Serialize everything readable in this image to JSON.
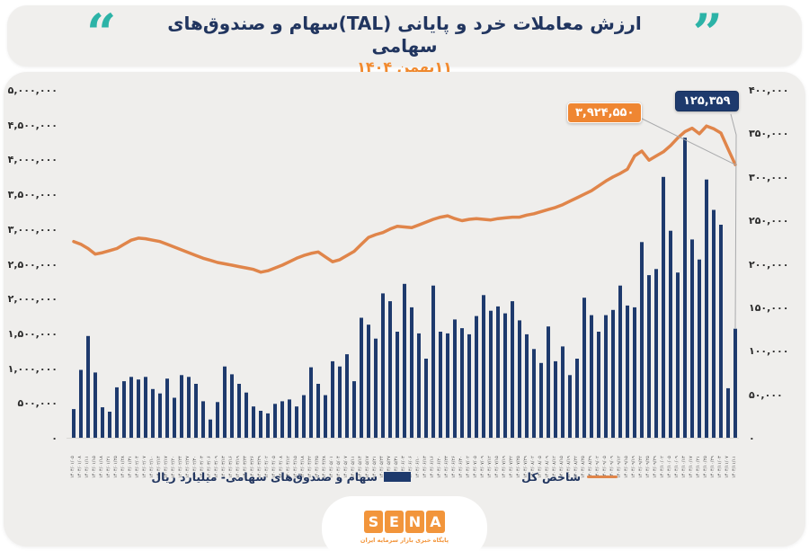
{
  "header": {
    "title": "ارزش معاملات خرد و پایانی (TAL)سهام و صندوق‌های سهامی",
    "date": "۱۱بهمن ۱۴۰۴",
    "quote_open": "“",
    "quote_close": "”",
    "quote_color": "#2cb3a7",
    "title_color": "#21355f",
    "date_color": "#f28a2e"
  },
  "chart_data": {
    "type": "bar",
    "subtype": "combo-bar-line",
    "grid": false,
    "legend_position": "bottom",
    "x_labels": [
      "۱۴۰۴/۰۱/۰۵",
      "۱۴۰۴/۰۱/۰۸",
      "۱۴۰۴/۰۱/۱۱",
      "۱۴۰۴/۰۱/۱۵",
      "۱۴۰۴/۰۱/۱۸",
      "۱۴۰۴/۰۱/۲۱",
      "۱۴۰۴/۰۱/۲۵",
      "۱۴۰۴/۰۱/۲۸",
      "۱۴۰۴/۰۱/۳۱",
      "۱۴۰۴/۰۲/۰۴",
      "۱۴۰۴/۰۲/۰۷",
      "۱۴۰۴/۰۲/۱۰",
      "۱۴۰۴/۰۲/۱۴",
      "۱۴۰۴/۰۲/۱۷",
      "۱۴۰۴/۰۲/۲۰",
      "۱۴۰۴/۰۲/۲۴",
      "۱۴۰۴/۰۲/۲۷",
      "۱۴۰۴/۰۲/۳۰",
      "۱۴۰۴/۰۳/۰۳",
      "۱۴۰۴/۰۳/۰۶",
      "۱۴۰۴/۰۳/۰۹",
      "۱۴۰۴/۰۳/۱۳",
      "۱۴۰۴/۰۳/۱۶",
      "۱۴۰۴/۰۳/۱۹",
      "۱۴۰۴/۰۳/۲۳",
      "۱۴۰۴/۰۳/۲۶",
      "۱۴۰۴/۰۳/۲۹",
      "۱۴۰۴/۰۴/۰۲",
      "۱۴۰۴/۰۴/۰۵",
      "۱۴۰۴/۰۴/۰۸",
      "۱۴۰۴/۰۴/۱۲",
      "۱۴۰۴/۰۴/۱۵",
      "۱۴۰۴/۰۴/۱۸",
      "۱۴۰۴/۰۴/۲۲",
      "۱۴۰۴/۰۴/۲۵",
      "۱۴۰۴/۰۴/۲۸",
      "۱۴۰۴/۰۵/۰۱",
      "۱۴۰۴/۰۵/۰۴",
      "۱۴۰۴/۰۵/۰۷",
      "۱۴۰۴/۰۵/۱۱",
      "۱۴۰۴/۰۵/۱۴",
      "۱۴۰۴/۰۵/۱۷",
      "۱۴۰۴/۰۵/۲۱",
      "۱۴۰۴/۰۵/۲۴",
      "۱۴۰۴/۰۵/۲۷",
      "۱۴۰۴/۰۵/۳۱",
      "۱۴۰۴/۰۶/۰۳",
      "۱۴۰۴/۰۶/۰۶",
      "۱۴۰۴/۰۶/۱۰",
      "۱۴۰۴/۰۶/۱۳",
      "۱۴۰۴/۰۶/۱۶",
      "۱۴۰۴/۰۶/۲۰",
      "۱۴۰۴/۰۶/۲۳",
      "۱۴۰۴/۰۶/۲۶",
      "۱۴۰۴/۰۶/۳۰",
      "۱۴۰۴/۰۷/۰۲",
      "۱۴۰۴/۰۷/۰۵",
      "۱۴۰۴/۰۷/۰۹",
      "۱۴۰۴/۰۷/۱۲",
      "۱۴۰۴/۰۷/۱۵",
      "۱۴۰۴/۰۷/۱۹",
      "۱۴۰۴/۰۷/۲۲",
      "۱۴۰۴/۰۷/۲۵",
      "۱۴۰۴/۰۷/۲۹",
      "۱۴۰۴/۰۸/۰۲",
      "۱۴۰۴/۰۸/۰۵",
      "۱۴۰۴/۰۸/۰۹",
      "۱۴۰۴/۰۸/۱۲",
      "۱۴۰۴/۰۸/۱۵",
      "۱۴۰۴/۰۸/۱۹",
      "۱۴۰۴/۰۸/۲۲",
      "۱۴۰۴/۰۸/۲۵",
      "۱۴۰۴/۰۸/۲۹",
      "۱۴۰۴/۰۹/۰۲",
      "۱۴۰۴/۰۹/۰۵",
      "۱۴۰۴/۰۹/۰۹",
      "۱۴۰۴/۰۹/۱۲",
      "۱۴۰۴/۰۹/۱۵",
      "۱۴۰۴/۰۹/۱۹",
      "۱۴۰۴/۰۹/۲۲",
      "۱۴۰۴/۰۹/۲۵",
      "۱۴۰۴/۰۹/۲۹",
      "۱۴۰۴/۱۰/۰۲",
      "۱۴۰۴/۱۰/۰۵",
      "۱۴۰۴/۱۰/۰۹",
      "۱۴۰۴/۱۰/۱۳",
      "۱۴۰۴/۱۰/۱۷",
      "۱۴۰۴/۱۰/۲۱",
      "۱۴۰۴/۱۰/۲۵",
      "۱۴۰۴/۱۰/۲۹",
      "۱۴۰۴/۱۱/۰۳",
      "۱۴۰۴/۱۱/۰۷",
      "۱۴۰۴/۱۱/۱۱"
    ],
    "series": [
      {
        "name": "سهام و صندوق‌های سهامی- میلیارد ریال",
        "type": "bar",
        "axis": "right",
        "color": "#1e3a6d",
        "values": [
          33000,
          78000,
          117000,
          75000,
          35000,
          30000,
          58000,
          65000,
          70000,
          67000,
          70000,
          56000,
          51000,
          68000,
          46000,
          72000,
          70000,
          62000,
          42000,
          21000,
          41000,
          82000,
          73000,
          62000,
          52000,
          36000,
          31000,
          28000,
          39000,
          42000,
          44000,
          36000,
          49000,
          81000,
          62000,
          49000,
          88000,
          82000,
          96000,
          65000,
          138000,
          130000,
          114000,
          166000,
          157000,
          122000,
          177000,
          150000,
          120000,
          91000,
          175000,
          122000,
          120000,
          136000,
          126000,
          119000,
          140000,
          164000,
          146000,
          151000,
          143000,
          157000,
          135000,
          119000,
          102000,
          86000,
          128000,
          88000,
          105000,
          72000,
          91000,
          161000,
          141000,
          122000,
          141000,
          147000,
          175000,
          152000,
          150000,
          225000,
          187000,
          194000,
          300000,
          238000,
          190000,
          345000,
          228000,
          205000,
          297000,
          262000,
          245000,
          57000,
          125359
        ]
      },
      {
        "name": "شاخص کل",
        "type": "line",
        "axis": "left",
        "color": "#e0854a",
        "values": [
          2820000,
          2780000,
          2720000,
          2640000,
          2660000,
          2690000,
          2720000,
          2780000,
          2840000,
          2870000,
          2860000,
          2840000,
          2820000,
          2780000,
          2740000,
          2700000,
          2660000,
          2620000,
          2580000,
          2550000,
          2520000,
          2500000,
          2480000,
          2460000,
          2440000,
          2420000,
          2380000,
          2400000,
          2440000,
          2480000,
          2530000,
          2580000,
          2620000,
          2650000,
          2670000,
          2600000,
          2530000,
          2560000,
          2620000,
          2680000,
          2780000,
          2880000,
          2920000,
          2950000,
          3000000,
          3040000,
          3030000,
          3020000,
          3060000,
          3100000,
          3140000,
          3170000,
          3190000,
          3150000,
          3120000,
          3140000,
          3150000,
          3140000,
          3130000,
          3150000,
          3160000,
          3170000,
          3170000,
          3200000,
          3220000,
          3250000,
          3280000,
          3310000,
          3350000,
          3400000,
          3450000,
          3500000,
          3550000,
          3620000,
          3690000,
          3750000,
          3800000,
          3860000,
          4050000,
          4120000,
          3990000,
          4050000,
          4110000,
          4200000,
          4310000,
          4400000,
          4450000,
          4370000,
          4480000,
          4440000,
          4380000,
          4150000,
          3924550
        ]
      }
    ],
    "left_axis": {
      "min": 0,
      "max": 5000000,
      "step": 500000,
      "tick_labels": [
        "۵,۰۰۰,۰۰۰",
        "۴,۵۰۰,۰۰۰",
        "۴,۰۰۰,۰۰۰",
        "۳,۵۰۰,۰۰۰",
        "۳,۰۰۰,۰۰۰",
        "۲,۵۰۰,۰۰۰",
        "۲,۰۰۰,۰۰۰",
        "۱,۵۰۰,۰۰۰",
        "۱,۰۰۰,۰۰۰",
        "۵۰۰,۰۰۰",
        "۰"
      ]
    },
    "right_axis": {
      "min": 0,
      "max": 400000,
      "step": 50000,
      "tick_labels": [
        "۴۰۰,۰۰۰",
        "۳۵۰,۰۰۰",
        "۳۰۰,۰۰۰",
        "۲۵۰,۰۰۰",
        "۲۰۰,۰۰۰",
        "۱۵۰,۰۰۰",
        "۱۰۰,۰۰۰",
        "۵۰,۰۰۰",
        "۰"
      ]
    },
    "callouts": {
      "line_end": {
        "text": "۳,۹۲۴,۵۵۰",
        "value": 3924550,
        "color": "#ef8632"
      },
      "bar_end": {
        "text": "۱۲۵,۳۵۹",
        "value": 125359,
        "color": "#1e3a6d"
      }
    }
  },
  "legend": {
    "bars_label": "سهام و صندوق‌های سهامی- میلیارد ریال",
    "line_label": "شاخص کل"
  },
  "footer": {
    "logo_letters": [
      "S",
      "E",
      "N",
      "A"
    ],
    "tagline": "پایگاه خبری بازار سرمایه ایران",
    "logo_color": "#f2953b"
  }
}
